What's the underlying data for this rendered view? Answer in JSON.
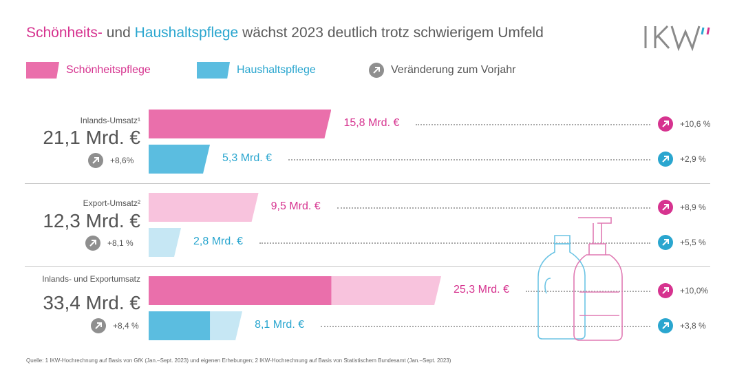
{
  "title": {
    "part1": "Schönheits-",
    "part2": " und ",
    "part3": "Haushaltspflege",
    "part4": " wächst 2023 deutlich trotz schwierigem Umfeld"
  },
  "logo": {
    "text": "IKW"
  },
  "legend": {
    "beauty": "Schönheitspflege",
    "household": "Haushaltspflege",
    "change": "Veränderung zum Vorjahr"
  },
  "colors": {
    "beauty": "#ea6fab",
    "beauty_light": "#f8c3dd",
    "household": "#5bbde0",
    "household_light": "#c6e7f4",
    "beauty_text": "#d6338f",
    "household_text": "#2aa6cf",
    "neutral_icon": "#8f8f8f"
  },
  "chart_data": {
    "type": "bar",
    "unit": "Mrd. €",
    "groups": [
      {
        "label": "Inlands-Umsatz¹",
        "total": "21,1 Mrd. €",
        "change": "+8,6%",
        "bars": [
          {
            "series": "Schönheitspflege",
            "value": 15.8,
            "label": "15,8 Mrd. €",
            "change": "+10,6 %",
            "stack": "single_dark"
          },
          {
            "series": "Haushaltspflege",
            "value": 5.3,
            "label": "5,3 Mrd. €",
            "change": "+2,9 %",
            "stack": "single_dark"
          }
        ]
      },
      {
        "label": "Export-Umsatz²",
        "total": "12,3 Mrd. €",
        "change": "+8,1 %",
        "bars": [
          {
            "series": "Schönheitspflege",
            "value": 9.5,
            "label": "9,5 Mrd. €",
            "change": "+8,9 %",
            "stack": "single_light"
          },
          {
            "series": "Haushaltspflege",
            "value": 2.8,
            "label": "2,8 Mrd. €",
            "change": "+5,5 %",
            "stack": "single_light"
          }
        ]
      },
      {
        "label": "Inlands- und Exportumsatz",
        "total": "33,4 Mrd. €",
        "change": "+8,4 %",
        "bars": [
          {
            "series": "Schönheitspflege",
            "value": 25.3,
            "label": "25,3 Mrd. €",
            "change": "+10,0%",
            "stack": "combined",
            "domestic": 15.8,
            "export": 9.5
          },
          {
            "series": "Haushaltspflege",
            "value": 8.1,
            "label": "8,1 Mrd. €",
            "change": "+3,8 %",
            "stack": "combined",
            "domestic": 5.3,
            "export": 2.8
          }
        ]
      }
    ]
  },
  "footnote": "Quelle: 1 IKW-Hochrechnung auf Basis von GfK (Jan.–Sept. 2023) und eigenen Erhebungen; 2 IKW-Hochrechnung auf Basis von Statistischem Bundesamt (Jan.–Sept. 2023)"
}
